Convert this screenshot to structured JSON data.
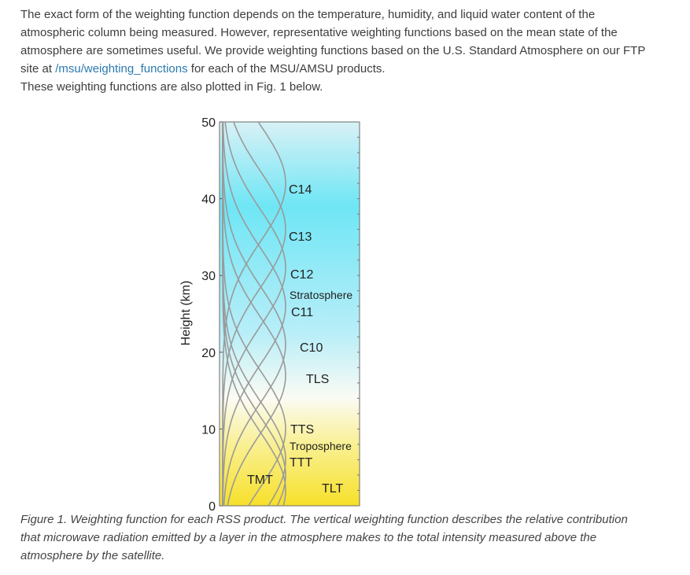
{
  "intro": {
    "text_before_link": "The exact form of the weighting function depends on the temperature, humidity, and liquid water content of the atmospheric column being measured. However, representative weighting functions based on the mean state of the atmosphere are sometimes useful.  We provide weighting functions based on the U.S. Standard Atmosphere on our FTP site at ",
    "link_text": "/msu/weighting_functions",
    "text_after_link": " for each of the MSU/AMSU products.",
    "line2": " These weighting functions are also plotted in Fig. 1 below."
  },
  "colors": {
    "sky_top": "#d8f1f6",
    "sky_mid": "#6fe6f5",
    "ground": "#f7e02a",
    "link": "#2a7ab0",
    "curve": "#9a9a9a"
  },
  "chart_data": {
    "type": "line",
    "ylabel": "Height (km)",
    "ylim": [
      0,
      50
    ],
    "y_ticks": [
      "0",
      "10",
      "20",
      "30",
      "40",
      "50"
    ],
    "layer_labels": [
      {
        "text": "Stratosphere",
        "height_km": 28
      },
      {
        "text": "Troposphere",
        "height_km": 8
      }
    ],
    "series": [
      {
        "name": "C14",
        "peak_km": 42
      },
      {
        "name": "C13",
        "peak_km": 36
      },
      {
        "name": "C12",
        "peak_km": 31
      },
      {
        "name": "C11",
        "peak_km": 26
      },
      {
        "name": "C10",
        "peak_km": 21
      },
      {
        "name": "TLS",
        "peak_km": 17
      },
      {
        "name": "TTS",
        "peak_km": 10
      },
      {
        "name": "TTT",
        "peak_km": 6
      },
      {
        "name": "TMT",
        "peak_km": 4
      },
      {
        "name": "TLT",
        "peak_km": 2
      }
    ]
  },
  "caption": "Figure 1. Weighting function for each RSS product. The vertical weighting function describes the relative contribution that microwave radiation emitted by a layer in the atmosphere makes to the total intensity measured above the atmosphere by the satellite."
}
